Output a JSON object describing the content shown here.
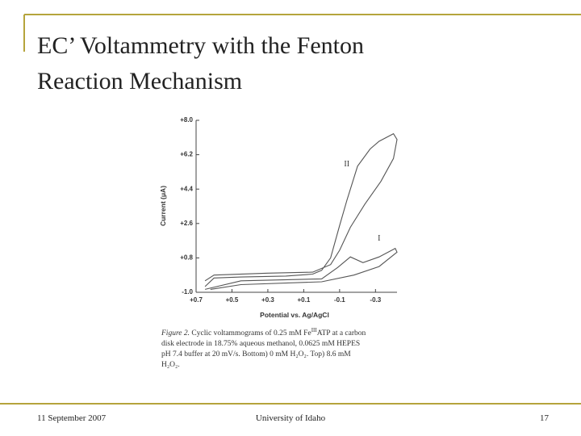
{
  "slide": {
    "title_lines": [
      "EC’ Voltammetry with the Fenton",
      "Reaction Mechanism"
    ],
    "footer": {
      "date": "11 September 2007",
      "organization": "University of Idaho",
      "page": "17"
    },
    "caption": {
      "label": "Figure 2.",
      "line1a": "Cyclic voltammograms of 0.25 mM Fe",
      "line1sup": "III",
      "line1b": "ATP at a carbon",
      "line2": "disk electrode in 18.75% aqueous methanol, 0.0625 mM HEPES",
      "line3": "pH 7.4 buffer at 20 mV/s. Bottom) 0 mM H₂O₂. Top) 8.6 mM",
      "line4": "H₂O₂."
    }
  },
  "chart_data": {
    "type": "line",
    "y_label": "Current (μA)",
    "x_label": "Potential vs.  Ag/AgCl",
    "xlim": [
      0.7,
      -0.42
    ],
    "ylim": [
      -1.0,
      8.0
    ],
    "xticks": [
      {
        "value": 0.7,
        "label": "+0.7"
      },
      {
        "value": 0.5,
        "label": "+0.5"
      },
      {
        "value": 0.3,
        "label": "+0.3"
      },
      {
        "value": 0.1,
        "label": "+0.1"
      },
      {
        "value": -0.1,
        "label": "-0.1"
      },
      {
        "value": -0.3,
        "label": "-0.3"
      }
    ],
    "yticks": [
      {
        "value": 8.0,
        "label": "+8.0"
      },
      {
        "value": 6.2,
        "label": "+6.2"
      },
      {
        "value": 4.4,
        "label": "+4.4"
      },
      {
        "value": 2.6,
        "label": "+2.6"
      },
      {
        "value": 0.8,
        "label": "+0.8"
      },
      {
        "value": -1.0,
        "label": "-1.0"
      }
    ],
    "series": [
      {
        "name": "I",
        "color": "#555555",
        "x": [
          0.65,
          0.45,
          0.0,
          -0.09,
          -0.16,
          -0.23,
          -0.32,
          -0.41,
          -0.42,
          -0.32,
          -0.18,
          0.0,
          0.45,
          0.62
        ],
        "values": [
          -0.85,
          -0.4,
          -0.3,
          0.3,
          0.85,
          0.55,
          0.85,
          1.3,
          1.1,
          0.35,
          -0.1,
          -0.45,
          -0.6,
          -0.85
        ]
      },
      {
        "name": "II",
        "color": "#555555",
        "x": [
          0.65,
          0.6,
          0.45,
          0.2,
          0.05,
          0.0,
          -0.05,
          -0.1,
          -0.14,
          -0.2,
          -0.27,
          -0.32,
          -0.4,
          -0.42,
          -0.4,
          -0.33,
          -0.24,
          -0.16,
          -0.1,
          -0.05,
          0.05,
          0.3,
          0.6,
          0.65
        ],
        "values": [
          -0.7,
          -0.25,
          -0.2,
          -0.15,
          -0.05,
          0.15,
          0.8,
          2.5,
          3.8,
          5.6,
          6.5,
          6.9,
          7.3,
          7.0,
          6.0,
          4.8,
          3.6,
          2.4,
          1.2,
          0.45,
          0.05,
          0.0,
          -0.1,
          -0.4
        ]
      }
    ]
  }
}
